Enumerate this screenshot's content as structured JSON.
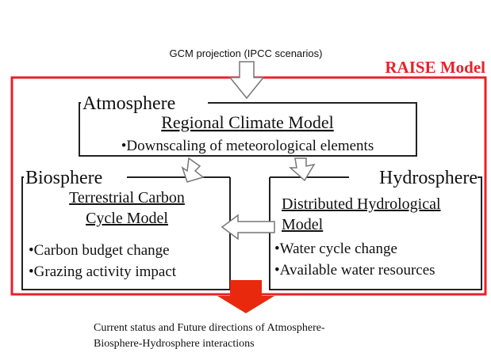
{
  "header": {
    "input": "GCM projection (IPCC scenarios)",
    "model": "RAISE Model"
  },
  "nodes": [
    {
      "sphere": "Atmosphere",
      "title": [
        "Regional Climate Model"
      ],
      "items": [
        "•Downscaling of meteorological elements"
      ]
    },
    {
      "sphere": "Biosphere",
      "title": [
        "Terrestrial Carbon",
        "Cycle Model"
      ],
      "items": [
        "•Carbon budget change",
        "•Grazing activity impact"
      ]
    },
    {
      "sphere": "Hydrosphere",
      "title": [
        "Distributed Hydrological",
        "Model"
      ],
      "items": [
        "•Water cycle change",
        "•Available water resources"
      ]
    }
  ],
  "output": [
    "Current status and Future directions of Atmosphere-",
    "Biosphere-Hydrosphere interactions"
  ]
}
